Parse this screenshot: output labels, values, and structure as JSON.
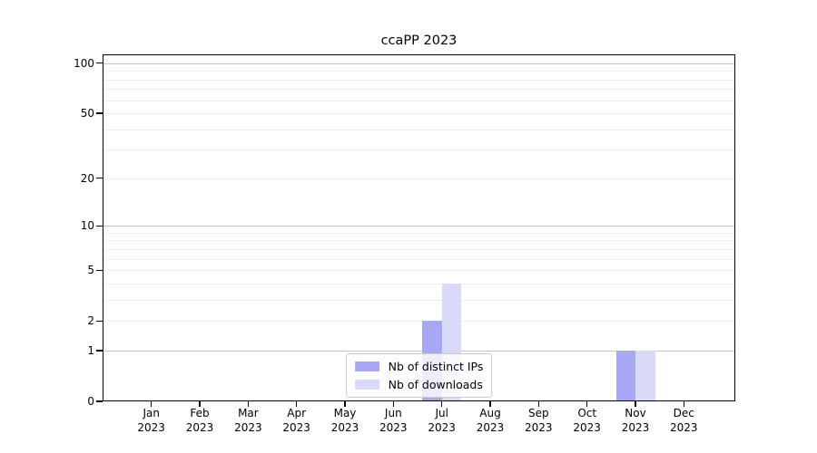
{
  "chart_data": {
    "type": "bar",
    "title": "ccaPP 2023",
    "categories": [
      "Jan",
      "Feb",
      "Mar",
      "Apr",
      "May",
      "Jun",
      "Jul",
      "Aug",
      "Sep",
      "Oct",
      "Nov",
      "Dec"
    ],
    "category_year": "2023",
    "series": [
      {
        "name": "Nb of distinct IPs",
        "color": "#a7a7f5",
        "values": [
          0,
          0,
          0,
          0,
          0,
          0,
          2,
          0,
          0,
          0,
          1,
          0
        ]
      },
      {
        "name": "Nb of downloads",
        "color": "#d9d9f8",
        "values": [
          0,
          0,
          0,
          0,
          0,
          0,
          4,
          0,
          0,
          0,
          1,
          0
        ]
      }
    ],
    "xlabel": "",
    "ylabel": "",
    "yscale": "log1p",
    "yticks": [
      0,
      1,
      2,
      5,
      10,
      20,
      50,
      100
    ],
    "ylim": [
      0,
      113
    ],
    "grid": "horizontal",
    "grid_major_values": [
      1,
      10,
      100
    ],
    "grid_minor_values": [
      2,
      3,
      4,
      5,
      6,
      7,
      8,
      9,
      20,
      30,
      40,
      50,
      60,
      70,
      80,
      90
    ],
    "legend_position": "inside-bottom-center"
  },
  "colors": {
    "background": "#ffffff",
    "spine": "#000000",
    "grid_major": "#c3c3c3",
    "grid_minor": "#efefef",
    "legend_border": "#cccccc"
  }
}
